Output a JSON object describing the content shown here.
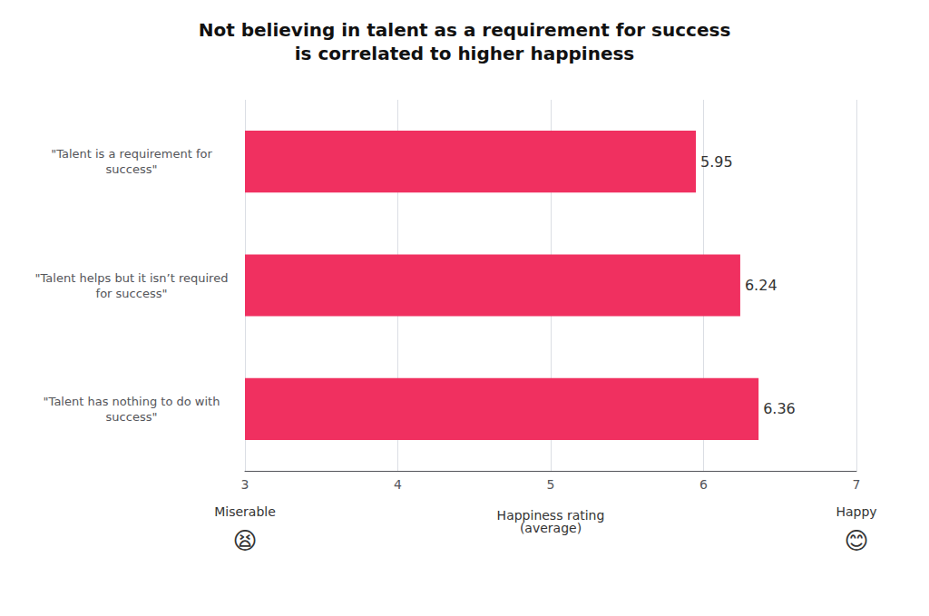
{
  "chart_data": {
    "type": "bar",
    "orientation": "horizontal",
    "title": "Not believing in talent as a requirement for success\nis correlated to higher happiness",
    "categories": [
      "\"Talent has nothing to do with\nsuccess\"",
      "\"Talent helps but it isn’t required\nfor success\"",
      "\"Talent is a requirement for\nsuccess\""
    ],
    "values": [
      6.36,
      6.24,
      5.95
    ],
    "color": "#F03060",
    "data_labels": true,
    "xlabel": "Happiness rating\n(average)",
    "xlim": [
      3,
      7
    ],
    "xticks": [
      3,
      4,
      5,
      6,
      7
    ],
    "grid": true,
    "annotations": [
      "Miserable",
      "😫",
      "Happy",
      "😊"
    ]
  }
}
